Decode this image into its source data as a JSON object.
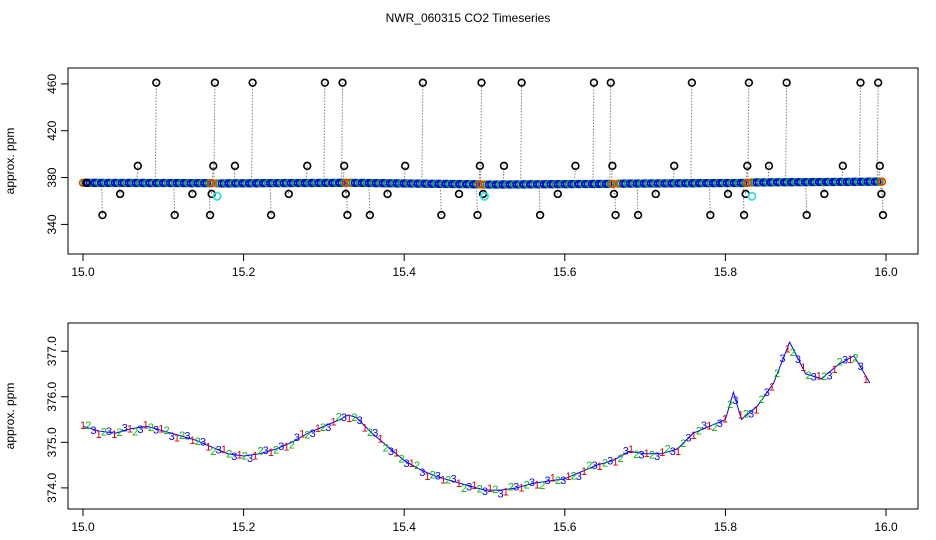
{
  "page": {
    "title": "NWR_060315  CO2 Timeseries"
  },
  "colors": {
    "raw_points": "#0000ff",
    "raw_points_alt": "#00bb00",
    "raw_lines": "#808080",
    "outliers": "#000000",
    "flagged": "#33dddd",
    "edge_points": "#ff3300",
    "label_1": "#dd0000",
    "label_2": "#00bb00",
    "label_3": "#0000ff"
  },
  "chart_data": [
    {
      "type": "scatter",
      "ylabel": "approx. ppm",
      "xlim": [
        15.0,
        16.0
      ],
      "ylim": [
        325,
        465
      ],
      "xticks": [
        "15.0",
        "15.2",
        "15.4",
        "15.6",
        "15.8",
        "16.0"
      ],
      "xtick_values": [
        15.0,
        15.2,
        15.4,
        15.6,
        15.8,
        16.0
      ],
      "yticks": [
        "340",
        "380",
        "420",
        "460"
      ],
      "ytick_values": [
        340,
        380,
        420,
        460
      ],
      "segments": [
        {
          "x0": 15.0,
          "x1": 15.16,
          "y0": 375.5,
          "y1": 375.2
        },
        {
          "x0": 15.167,
          "x1": 15.328,
          "y0": 375.0,
          "y1": 375.5
        },
        {
          "x0": 15.333,
          "x1": 15.495,
          "y0": 375.5,
          "y1": 374.2
        },
        {
          "x0": 15.5,
          "x1": 15.66,
          "y0": 374.0,
          "y1": 374.6
        },
        {
          "x0": 15.667,
          "x1": 15.828,
          "y0": 374.8,
          "y1": 375.4
        },
        {
          "x0": 15.833,
          "x1": 15.995,
          "y0": 375.8,
          "y1": 376.5
        }
      ],
      "outliers": [
        {
          "x": 15.003,
          "y": 375.5
        },
        {
          "x": 15.023,
          "y": 348
        },
        {
          "x": 15.045,
          "y": 366
        },
        {
          "x": 15.067,
          "y": 390
        },
        {
          "x": 15.09,
          "y": 461
        },
        {
          "x": 15.113,
          "y": 348
        },
        {
          "x": 15.135,
          "y": 366
        },
        {
          "x": 15.157,
          "y": 348
        },
        {
          "x": 15.159,
          "y": 366
        },
        {
          "x": 15.161,
          "y": 390
        },
        {
          "x": 15.163,
          "y": 461
        },
        {
          "x": 15.188,
          "y": 390
        },
        {
          "x": 15.21,
          "y": 461
        },
        {
          "x": 15.233,
          "y": 348
        },
        {
          "x": 15.255,
          "y": 366
        },
        {
          "x": 15.278,
          "y": 390
        },
        {
          "x": 15.3,
          "y": 461
        },
        {
          "x": 15.322,
          "y": 461
        },
        {
          "x": 15.324,
          "y": 390
        },
        {
          "x": 15.326,
          "y": 366
        },
        {
          "x": 15.328,
          "y": 348
        },
        {
          "x": 15.356,
          "y": 348
        },
        {
          "x": 15.378,
          "y": 366
        },
        {
          "x": 15.4,
          "y": 390
        },
        {
          "x": 15.422,
          "y": 461
        },
        {
          "x": 15.445,
          "y": 348
        },
        {
          "x": 15.467,
          "y": 366
        },
        {
          "x": 15.49,
          "y": 348
        },
        {
          "x": 15.493,
          "y": 390
        },
        {
          "x": 15.495,
          "y": 461
        },
        {
          "x": 15.497,
          "y": 366
        },
        {
          "x": 15.523,
          "y": 390
        },
        {
          "x": 15.545,
          "y": 461
        },
        {
          "x": 15.568,
          "y": 348
        },
        {
          "x": 15.59,
          "y": 366
        },
        {
          "x": 15.612,
          "y": 390
        },
        {
          "x": 15.635,
          "y": 461
        },
        {
          "x": 15.656,
          "y": 461
        },
        {
          "x": 15.658,
          "y": 390
        },
        {
          "x": 15.66,
          "y": 366
        },
        {
          "x": 15.662,
          "y": 348
        },
        {
          "x": 15.69,
          "y": 348
        },
        {
          "x": 15.712,
          "y": 366
        },
        {
          "x": 15.735,
          "y": 390
        },
        {
          "x": 15.757,
          "y": 461
        },
        {
          "x": 15.78,
          "y": 348
        },
        {
          "x": 15.802,
          "y": 366
        },
        {
          "x": 15.822,
          "y": 348
        },
        {
          "x": 15.824,
          "y": 366
        },
        {
          "x": 15.826,
          "y": 390
        },
        {
          "x": 15.828,
          "y": 461
        },
        {
          "x": 15.853,
          "y": 390
        },
        {
          "x": 15.875,
          "y": 461
        },
        {
          "x": 15.9,
          "y": 348
        },
        {
          "x": 15.922,
          "y": 366
        },
        {
          "x": 15.945,
          "y": 390
        },
        {
          "x": 15.967,
          "y": 461
        },
        {
          "x": 15.989,
          "y": 461
        },
        {
          "x": 15.991,
          "y": 390
        },
        {
          "x": 15.993,
          "y": 366
        },
        {
          "x": 15.995,
          "y": 348
        }
      ],
      "flagged": [
        {
          "x": 15.167,
          "y": 364
        },
        {
          "x": 15.5,
          "y": 364
        },
        {
          "x": 15.833,
          "y": 364
        }
      ]
    },
    {
      "type": "line",
      "ylabel": "approx. ppm",
      "xlim": [
        15.0,
        16.0
      ],
      "ylim": [
        373.8,
        377.4
      ],
      "xticks": [
        "15.0",
        "15.2",
        "15.4",
        "15.6",
        "15.8",
        "16.0"
      ],
      "xtick_values": [
        15.0,
        15.2,
        15.4,
        15.6,
        15.8,
        16.0
      ],
      "yticks": [
        "374.0",
        "375.0",
        "376.0",
        "377.0"
      ],
      "ytick_values": [
        374.0,
        375.0,
        376.0,
        377.0
      ],
      "series_labels": [
        "1",
        "2",
        "3"
      ],
      "x": [
        15.0,
        15.02,
        15.04,
        15.06,
        15.08,
        15.1,
        15.12,
        15.14,
        15.16,
        15.18,
        15.2,
        15.22,
        15.24,
        15.26,
        15.28,
        15.3,
        15.32,
        15.33,
        15.34,
        15.36,
        15.38,
        15.4,
        15.42,
        15.44,
        15.46,
        15.48,
        15.5,
        15.52,
        15.54,
        15.56,
        15.58,
        15.6,
        15.62,
        15.64,
        15.66,
        15.68,
        15.7,
        15.72,
        15.74,
        15.76,
        15.78,
        15.8,
        15.81,
        15.82,
        15.84,
        15.86,
        15.88,
        15.9,
        15.92,
        15.94,
        15.96,
        15.98
      ],
      "y": [
        375.35,
        375.25,
        375.2,
        375.3,
        375.35,
        375.25,
        375.15,
        375.05,
        374.9,
        374.75,
        374.7,
        374.75,
        374.85,
        375.0,
        375.2,
        375.35,
        375.5,
        375.6,
        375.55,
        375.2,
        374.9,
        374.6,
        374.4,
        374.25,
        374.15,
        374.05,
        373.95,
        373.95,
        374.0,
        374.1,
        374.15,
        374.2,
        374.35,
        374.5,
        374.6,
        374.8,
        374.75,
        374.75,
        374.85,
        375.2,
        375.35,
        375.5,
        376.1,
        375.5,
        375.8,
        376.3,
        377.2,
        376.5,
        376.4,
        376.7,
        376.9,
        376.3
      ]
    }
  ]
}
